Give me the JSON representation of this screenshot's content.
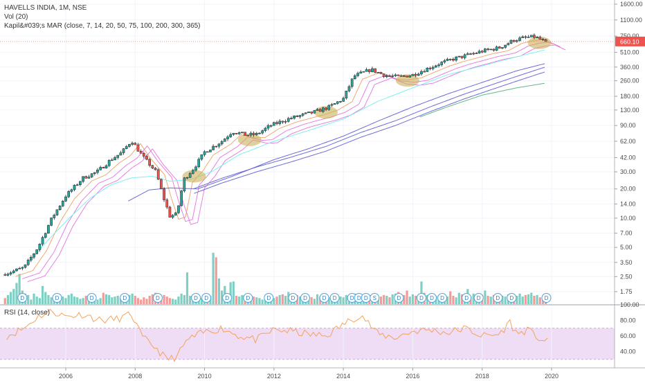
{
  "legend": {
    "title": "HAVELLS INDIA, 1M, NSE",
    "vol": "Vol (20)",
    "mar": "Kapil&#039;s MAR (close, 7, 14, 20, 50, 75, 100, 200, 300, 365)",
    "rsi": "RSI (14, close)"
  },
  "price_axis": {
    "ticks": [
      "1600.00",
      "1100.00",
      "750.00",
      "510.00",
      "360.00",
      "260.00",
      "180.00",
      "130.00",
      "90.00",
      "62.00",
      "42.00",
      "30.00",
      "20.00",
      "14.00",
      "10.00",
      "7.00",
      "5.00",
      "3.50",
      "2.50",
      "1.75"
    ],
    "last_price": "660.10",
    "last_price_color": "#ef5350"
  },
  "rsi_axis": {
    "ticks": [
      "100.00",
      "80.00",
      "60.00",
      "40.00"
    ]
  },
  "time_axis": {
    "labels": [
      "2006",
      "2008",
      "2010",
      "2012",
      "2014",
      "2016",
      "2018",
      "2020"
    ]
  },
  "event_markers": {
    "dividend": "D",
    "split": "S"
  },
  "colors": {
    "up": "#26a69a",
    "down": "#ef5350",
    "vol_up": "#7fcfc3",
    "vol_down": "#f29c9a",
    "rsi_line": "#f5a25a",
    "rsi_band": "#efdcf5",
    "ma_fast": "#f0a060",
    "ma_pink": "#e573e0",
    "ma_cyan": "#7ff0ef",
    "ma_blue": "#6a6ad9",
    "ma_green": "#5fb88a",
    "highlight": "#c9b15a"
  },
  "chart_data": {
    "type": "candlestick",
    "title": "HAVELLS INDIA, 1M, NSE",
    "y_scale": "log",
    "ylim": [
      1.5,
      2000
    ],
    "x_range": [
      2004.2,
      2020.6
    ],
    "price_path": [
      [
        2004.3,
        2.7
      ],
      [
        2004.8,
        3.1
      ],
      [
        2005.2,
        5
      ],
      [
        2005.6,
        10
      ],
      [
        2006.0,
        17
      ],
      [
        2006.5,
        26
      ],
      [
        2006.9,
        30
      ],
      [
        2007.3,
        40
      ],
      [
        2007.6,
        47
      ],
      [
        2007.9,
        63
      ],
      [
        2008.2,
        44
      ],
      [
        2008.6,
        30
      ],
      [
        2008.8,
        17
      ],
      [
        2009.0,
        10.5
      ],
      [
        2009.2,
        11
      ],
      [
        2009.4,
        25
      ],
      [
        2009.7,
        33
      ],
      [
        2010.0,
        48
      ],
      [
        2010.5,
        62
      ],
      [
        2010.8,
        78
      ],
      [
        2011.2,
        72
      ],
      [
        2011.5,
        73
      ],
      [
        2011.9,
        90
      ],
      [
        2012.4,
        105
      ],
      [
        2012.8,
        115
      ],
      [
        2013.2,
        125
      ],
      [
        2013.6,
        140
      ],
      [
        2014.0,
        170
      ],
      [
        2014.3,
        290
      ],
      [
        2014.8,
        340
      ],
      [
        2015.2,
        295
      ],
      [
        2015.6,
        285
      ],
      [
        2016.0,
        300
      ],
      [
        2016.4,
        345
      ],
      [
        2016.8,
        395
      ],
      [
        2017.2,
        440
      ],
      [
        2017.6,
        480
      ],
      [
        2018.0,
        525
      ],
      [
        2018.5,
        570
      ],
      [
        2018.9,
        680
      ],
      [
        2019.2,
        720
      ],
      [
        2019.5,
        740
      ],
      [
        2019.8,
        660
      ]
    ],
    "last_close": 660.1,
    "moving_averages": {
      "periods": [
        7,
        14,
        20,
        50,
        75,
        100,
        200,
        300,
        365
      ],
      "ma50_path": [
        [
          2004.9,
          3.4
        ],
        [
          2005.5,
          6
        ],
        [
          2006.1,
          10
        ],
        [
          2006.7,
          16
        ],
        [
          2007.3,
          22
        ],
        [
          2007.9,
          26
        ],
        [
          2008.5,
          27
        ],
        [
          2009.0,
          24
        ],
        [
          2009.6,
          25
        ],
        [
          2010.2,
          30
        ],
        [
          2011.0,
          45
        ],
        [
          2012.0,
          62
        ],
        [
          2013.0,
          80
        ],
        [
          2014.0,
          105
        ],
        [
          2015.0,
          160
        ],
        [
          2016.0,
          220
        ],
        [
          2017.0,
          300
        ],
        [
          2018.0,
          370
        ],
        [
          2019.0,
          460
        ],
        [
          2019.8,
          540
        ]
      ],
      "ma100_path": [
        [
          2007.8,
          15
        ],
        [
          2008.4,
          19.5
        ],
        [
          2009.0,
          20.5
        ],
        [
          2009.8,
          20
        ],
        [
          2010.8,
          27
        ],
        [
          2012.0,
          40
        ],
        [
          2013.0,
          52
        ],
        [
          2014.0,
          70
        ],
        [
          2015.0,
          100
        ],
        [
          2016.0,
          140
        ],
        [
          2017.0,
          190
        ],
        [
          2018.0,
          250
        ],
        [
          2019.0,
          330
        ],
        [
          2019.8,
          390
        ]
      ],
      "ma200_path": [
        [
          2009.7,
          18
        ],
        [
          2010.5,
          23
        ],
        [
          2011.5,
          30
        ],
        [
          2012.5,
          38
        ],
        [
          2013.5,
          49
        ],
        [
          2014.5,
          68
        ],
        [
          2015.5,
          90
        ],
        [
          2016.5,
          125
        ],
        [
          2017.5,
          170
        ],
        [
          2018.5,
          225
        ],
        [
          2019.3,
          280
        ],
        [
          2019.8,
          320
        ]
      ],
      "ma365_path": [
        [
          2016.2,
          110
        ],
        [
          2017.0,
          140
        ],
        [
          2018.0,
          185
        ],
        [
          2019.0,
          220
        ],
        [
          2019.8,
          245
        ]
      ]
    },
    "rsi": {
      "ylim": [
        20,
        100
      ],
      "band": [
        30,
        70
      ],
      "path": [
        [
          2004.3,
          60
        ],
        [
          2004.8,
          70
        ],
        [
          2005.2,
          85
        ],
        [
          2005.6,
          92
        ],
        [
          2006.0,
          85
        ],
        [
          2006.5,
          88
        ],
        [
          2007.0,
          80
        ],
        [
          2007.5,
          82
        ],
        [
          2007.9,
          88
        ],
        [
          2008.2,
          58
        ],
        [
          2008.6,
          45
        ],
        [
          2008.9,
          30
        ],
        [
          2009.2,
          33
        ],
        [
          2009.5,
          55
        ],
        [
          2010.0,
          65
        ],
        [
          2010.5,
          70
        ],
        [
          2011.0,
          60
        ],
        [
          2011.5,
          55
        ],
        [
          2012.0,
          68
        ],
        [
          2012.5,
          66
        ],
        [
          2013.0,
          62
        ],
        [
          2013.5,
          60
        ],
        [
          2014.0,
          75
        ],
        [
          2014.5,
          88
        ],
        [
          2015.0,
          62
        ],
        [
          2015.5,
          58
        ],
        [
          2016.0,
          66
        ],
        [
          2016.5,
          68
        ],
        [
          2017.0,
          64
        ],
        [
          2017.5,
          70
        ],
        [
          2018.0,
          60
        ],
        [
          2018.5,
          62
        ],
        [
          2018.8,
          78
        ],
        [
          2019.0,
          62
        ],
        [
          2019.3,
          68
        ],
        [
          2019.6,
          58
        ],
        [
          2019.9,
          52
        ]
      ]
    },
    "volume_ylim": [
      0,
      10
    ],
    "volume": [
      0.8,
      1.2,
      1.6,
      2,
      2.8,
      4,
      1.8,
      1.4,
      1.2,
      0.6,
      1.4,
      1,
      0.8,
      2.4,
      1.6,
      1.2,
      0.9,
      0.7,
      1.1,
      1.3,
      1,
      0.8,
      1.2,
      1.4,
      1,
      0.9,
      0.7,
      0.8,
      1.1,
      1.2,
      1.3,
      0.9,
      0.6,
      0.8,
      1.5,
      1.3,
      1.2,
      0.9,
      1,
      1.1,
      0.8,
      0.7,
      0.9,
      1.2,
      1.4,
      1.1,
      0.8,
      0.6,
      0.9,
      0.7,
      1.1,
      1.3,
      1.5,
      0.8,
      0.9,
      1.2,
      1,
      0.8,
      0.7,
      0.6,
      1,
      1.4,
      1.2,
      4.2,
      1.1,
      0.9,
      1.3,
      1,
      0.8,
      0.9,
      1.2,
      1.1,
      6.8,
      6.2,
      3.4,
      1.8,
      2.4,
      1.4,
      2.9,
      3,
      1.1,
      1,
      1.2,
      0.9,
      0.8,
      0.7,
      1,
      0.9,
      0.8,
      0.6,
      0.7,
      0.9,
      1.1,
      0.8,
      1,
      1.2,
      1.3,
      1.1,
      1.6,
      1.3,
      0.9,
      1.2,
      1,
      0.8,
      1.4,
      1.1,
      0.9,
      0.7,
      1.3,
      1,
      0.8,
      1.2,
      0.9,
      0.7,
      0.8,
      1.1,
      1,
      0.9,
      1.2,
      0.8,
      0.9,
      1.4,
      1.1,
      1,
      0.9,
      0.8,
      1.2,
      1.1,
      0.8,
      0.9,
      1,
      1.2,
      1.1,
      0.9,
      1.3,
      1.4,
      1.6,
      1.1,
      1.2,
      1.8,
      1,
      1.3,
      1.1,
      0.9,
      3,
      1.5,
      1.2,
      1,
      1.4,
      1.1,
      0.8,
      1.3,
      1.2,
      1,
      1.7,
      1.1,
      0.9,
      1.5,
      1.3,
      1.2,
      2,
      1,
      1.4,
      1.3,
      1.1,
      1.2,
      1.8,
      1.1,
      1,
      1.2,
      0.9,
      0.8,
      1.1,
      1,
      1.3,
      1.2,
      0.9,
      1.1,
      1.4,
      1,
      1.2,
      1.3,
      1.5,
      1.1,
      1.2,
      0.9,
      1,
      1.3,
      1.1,
      0.9,
      0.7
    ],
    "events": [
      {
        "type": "D",
        "x": 2004.75
      },
      {
        "type": "D",
        "x": 2005.75
      },
      {
        "type": "D",
        "x": 2006.75
      },
      {
        "type": "D",
        "x": 2007.7
      },
      {
        "type": "D",
        "x": 2008.65
      },
      {
        "type": "D",
        "x": 2009.75
      },
      {
        "type": "D",
        "x": 2010.05
      },
      {
        "type": "D",
        "x": 2010.65
      },
      {
        "type": "D",
        "x": 2011.25
      },
      {
        "type": "D",
        "x": 2011.85
      },
      {
        "type": "D",
        "x": 2012.55
      },
      {
        "type": "D",
        "x": 2012.9
      },
      {
        "type": "D",
        "x": 2013.45
      },
      {
        "type": "D",
        "x": 2013.75
      },
      {
        "type": "D",
        "x": 2014.25
      },
      {
        "type": "D",
        "x": 2014.45
      },
      {
        "type": "D",
        "x": 2014.65
      },
      {
        "type": "S",
        "x": 2014.9
      },
      {
        "type": "D",
        "x": 2015.6
      },
      {
        "type": "D",
        "x": 2016.25
      },
      {
        "type": "D",
        "x": 2016.55
      },
      {
        "type": "D",
        "x": 2016.85
      },
      {
        "type": "D",
        "x": 2017.55
      },
      {
        "type": "D",
        "x": 2017.9
      },
      {
        "type": "D",
        "x": 2018.45
      },
      {
        "type": "D",
        "x": 2018.85
      },
      {
        "type": "D",
        "x": 2019.85
      }
    ],
    "highlights": [
      {
        "x": 2009.7,
        "y": 27
      },
      {
        "x": 2011.3,
        "y": 64
      },
      {
        "x": 2013.5,
        "y": 123
      },
      {
        "x": 2015.85,
        "y": 262
      },
      {
        "x": 2019.65,
        "y": 640
      }
    ]
  }
}
